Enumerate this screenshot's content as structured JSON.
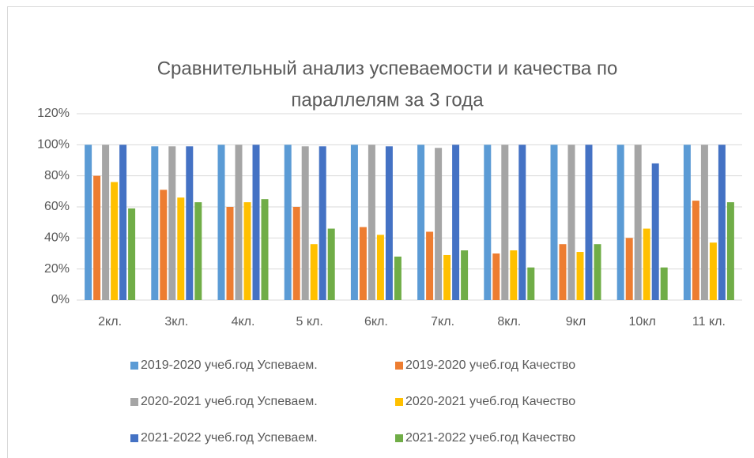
{
  "chart_data": {
    "type": "bar",
    "title_lines": [
      "Сравнительный анализ успеваемости и качества по",
      "параллелям за 3 года"
    ],
    "categories": [
      "2кл.",
      "3кл.",
      "4кл.",
      "5 кл.",
      "6кл.",
      "7кл.",
      "8кл.",
      "9кл",
      "10кл",
      "11 кл."
    ],
    "series": [
      {
        "name": "2019-2020 учеб.год Успеваем.",
        "color": "#5b9bd5",
        "values": [
          100,
          99,
          100,
          100,
          100,
          100,
          100,
          100,
          100,
          100
        ]
      },
      {
        "name": "2019-2020 учеб.год Качество",
        "color": "#ed7d31",
        "values": [
          80,
          71,
          60,
          60,
          47,
          44,
          30,
          36,
          40,
          64
        ]
      },
      {
        "name": "2020-2021 учеб.год Успеваем.",
        "color": "#a5a5a5",
        "values": [
          100,
          99,
          100,
          99,
          100,
          98,
          100,
          100,
          100,
          100
        ]
      },
      {
        "name": "2020-2021 учеб.год Качество",
        "color": "#ffc000",
        "values": [
          76,
          66,
          63,
          36,
          42,
          29,
          32,
          31,
          46,
          37
        ]
      },
      {
        "name": "2021-2022 учеб.год Успеваем.",
        "color": "#4472c4",
        "values": [
          100,
          99,
          100,
          99,
          99,
          100,
          100,
          100,
          88,
          100
        ]
      },
      {
        "name": "2021-2022 учеб.год Качество",
        "color": "#70ad47",
        "values": [
          59,
          63,
          65,
          46,
          28,
          32,
          21,
          36,
          21,
          63
        ]
      }
    ],
    "ylim": [
      0,
      120
    ],
    "yticks": [
      {
        "value": 0,
        "label": "0%"
      },
      {
        "value": 20,
        "label": "20%"
      },
      {
        "value": 40,
        "label": "40%"
      },
      {
        "value": 60,
        "label": "60%"
      },
      {
        "value": 80,
        "label": "80%"
      },
      {
        "value": 100,
        "label": "100%"
      },
      {
        "value": 120,
        "label": "120%"
      }
    ],
    "grid": true,
    "legend": "bottom"
  }
}
